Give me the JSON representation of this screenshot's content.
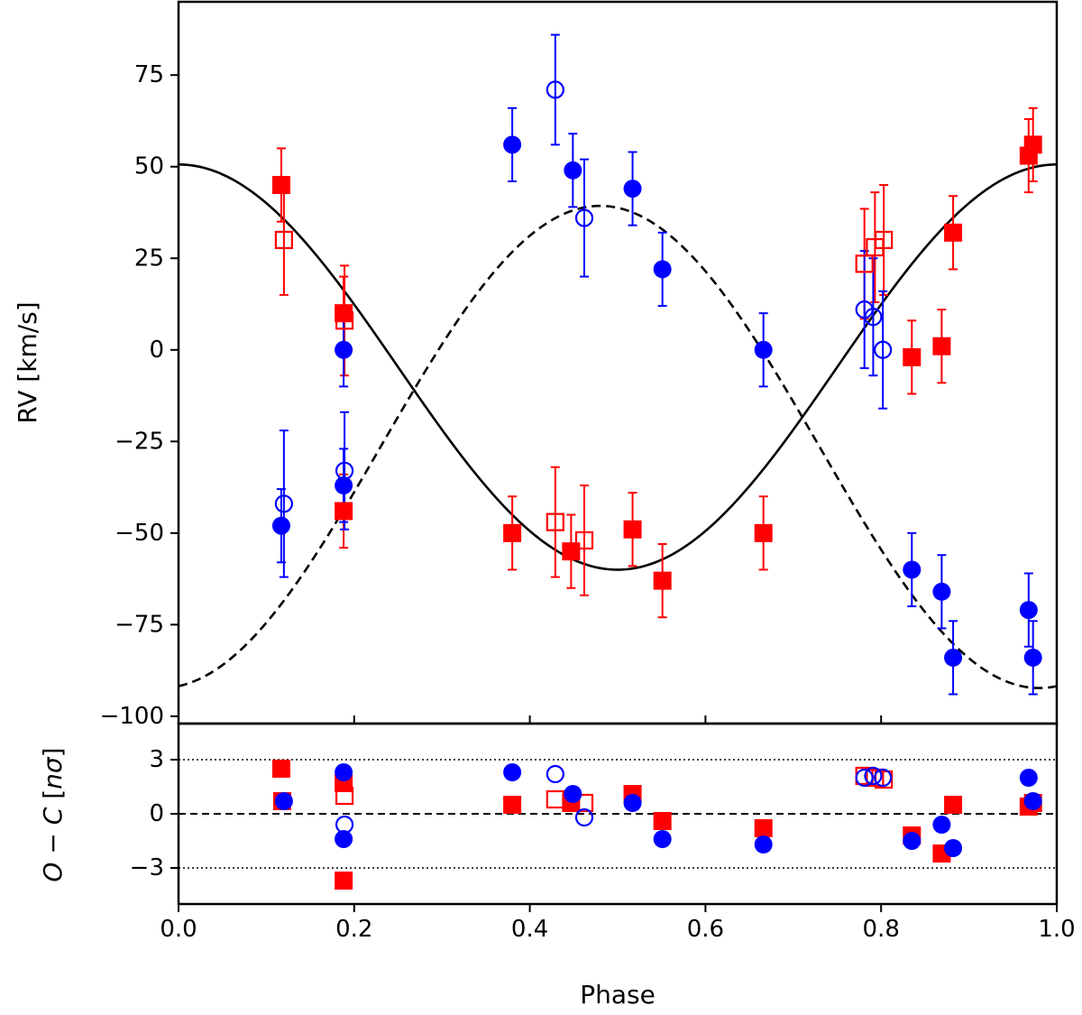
{
  "chart_data": {
    "type": "scatter",
    "title": "",
    "xlabel": "Phase",
    "xlim": [
      0.0,
      1.0
    ],
    "xticks": [
      "0.0",
      "0.2",
      "0.4",
      "0.6",
      "0.8",
      "1.0"
    ],
    "top_panel": {
      "ylabel": "RV [km/s]",
      "ylim": [
        -102,
        95
      ],
      "yticks": [
        "75",
        "50",
        "25",
        "0",
        "−25",
        "−50",
        "−75",
        "−100"
      ],
      "ytick_values": [
        75,
        50,
        25,
        0,
        -25,
        -50,
        -75,
        -100
      ],
      "models": [
        {
          "name": "solid model curve",
          "style": "solid",
          "color": "#000000",
          "gamma": -4.7,
          "K": 55.3,
          "phase_of_max": 0.0
        },
        {
          "name": "dashed model curve",
          "style": "dashed",
          "color": "#000000",
          "gamma": -26.5,
          "K": 65.8,
          "phase_of_max": 0.48
        }
      ],
      "series": [
        {
          "name": "red filled squares",
          "color": "#ff0000",
          "marker": "square",
          "filled": true,
          "points": [
            {
              "x": 0.117,
              "y": 45,
              "err": 10
            },
            {
              "x": 0.188,
              "y": 10,
              "err": 10
            },
            {
              "x": 0.188,
              "y": -44,
              "err": 10
            },
            {
              "x": 0.38,
              "y": -50,
              "err": 10
            },
            {
              "x": 0.447,
              "y": -55,
              "err": 10
            },
            {
              "x": 0.517,
              "y": -49,
              "err": 10
            },
            {
              "x": 0.551,
              "y": -63,
              "err": 10
            },
            {
              "x": 0.666,
              "y": -50,
              "err": 10
            },
            {
              "x": 0.835,
              "y": -2,
              "err": 10
            },
            {
              "x": 0.869,
              "y": 1,
              "err": 10
            },
            {
              "x": 0.882,
              "y": 32,
              "err": 10
            },
            {
              "x": 0.968,
              "y": 53,
              "err": 10
            },
            {
              "x": 0.973,
              "y": 56,
              "err": 10
            }
          ]
        },
        {
          "name": "red open squares",
          "color": "#ff0000",
          "marker": "square",
          "filled": false,
          "points": [
            {
              "x": 0.12,
              "y": 30,
              "err": 15
            },
            {
              "x": 0.189,
              "y": 8,
              "err": 15
            },
            {
              "x": 0.429,
              "y": -47,
              "err": 15
            },
            {
              "x": 0.462,
              "y": -52,
              "err": 15
            },
            {
              "x": 0.781,
              "y": 23.5,
              "err": 15
            },
            {
              "x": 0.793,
              "y": 28,
              "err": 15
            },
            {
              "x": 0.803,
              "y": 30,
              "err": 15
            }
          ]
        },
        {
          "name": "blue filled circles",
          "color": "#0000ff",
          "marker": "circle",
          "filled": true,
          "points": [
            {
              "x": 0.117,
              "y": -48,
              "err": 10
            },
            {
              "x": 0.188,
              "y": 0,
              "err": 10
            },
            {
              "x": 0.188,
              "y": -37,
              "err": 10
            },
            {
              "x": 0.38,
              "y": 56,
              "err": 10
            },
            {
              "x": 0.449,
              "y": 49,
              "err": 10
            },
            {
              "x": 0.517,
              "y": 44,
              "err": 10
            },
            {
              "x": 0.551,
              "y": 22,
              "err": 10
            },
            {
              "x": 0.666,
              "y": 0,
              "err": 10
            },
            {
              "x": 0.835,
              "y": -60,
              "err": 10
            },
            {
              "x": 0.869,
              "y": -66,
              "err": 10
            },
            {
              "x": 0.882,
              "y": -84,
              "err": 10
            },
            {
              "x": 0.968,
              "y": -71,
              "err": 10
            },
            {
              "x": 0.973,
              "y": -84,
              "err": 10
            }
          ]
        },
        {
          "name": "blue open circles",
          "color": "#0000ff",
          "marker": "circle",
          "filled": false,
          "points": [
            {
              "x": 0.12,
              "y": -42,
              "err": 20
            },
            {
              "x": 0.189,
              "y": -33,
              "err": 16
            },
            {
              "x": 0.429,
              "y": 71,
              "err": 15
            },
            {
              "x": 0.462,
              "y": 36,
              "err": 16
            },
            {
              "x": 0.781,
              "y": 11,
              "err": 16
            },
            {
              "x": 0.791,
              "y": 9,
              "err": 16
            },
            {
              "x": 0.802,
              "y": 0,
              "err": 16
            }
          ]
        }
      ]
    },
    "bottom_panel": {
      "ylabel_parts": [
        "O",
        " − ",
        "C",
        " [",
        "nσ",
        "]"
      ],
      "ylim": [
        -5,
        5
      ],
      "yticks": [
        "3",
        "0",
        "−3"
      ],
      "ytick_values": [
        3,
        0,
        -3
      ],
      "reference_lines": [
        {
          "y": 3,
          "style": "dotted"
        },
        {
          "y": 0,
          "style": "dashed"
        },
        {
          "y": -3,
          "style": "dotted"
        }
      ],
      "series": [
        {
          "name": "red filled squares residuals",
          "color": "#ff0000",
          "marker": "square",
          "filled": true,
          "points": [
            {
              "x": 0.117,
              "y": 2.5
            },
            {
              "x": 0.118,
              "y": 0.7
            },
            {
              "x": 0.188,
              "y": 1.7
            },
            {
              "x": 0.188,
              "y": -3.7
            },
            {
              "x": 0.38,
              "y": 0.5
            },
            {
              "x": 0.447,
              "y": 0.6
            },
            {
              "x": 0.517,
              "y": 1.1
            },
            {
              "x": 0.551,
              "y": -0.4
            },
            {
              "x": 0.666,
              "y": -0.8
            },
            {
              "x": 0.835,
              "y": -1.2
            },
            {
              "x": 0.869,
              "y": -2.2
            },
            {
              "x": 0.882,
              "y": 0.5
            },
            {
              "x": 0.968,
              "y": 0.4
            },
            {
              "x": 0.973,
              "y": 0.6
            }
          ]
        },
        {
          "name": "red open squares residuals",
          "color": "#ff0000",
          "marker": "square",
          "filled": false,
          "points": [
            {
              "x": 0.189,
              "y": 1.0
            },
            {
              "x": 0.429,
              "y": 0.8
            },
            {
              "x": 0.462,
              "y": 0.6
            },
            {
              "x": 0.781,
              "y": 2.1
            },
            {
              "x": 0.793,
              "y": 2.0
            },
            {
              "x": 0.803,
              "y": 1.9
            }
          ]
        },
        {
          "name": "blue filled circles residuals",
          "color": "#0000ff",
          "marker": "circle",
          "filled": true,
          "points": [
            {
              "x": 0.12,
              "y": 0.7
            },
            {
              "x": 0.188,
              "y": 2.3
            },
            {
              "x": 0.188,
              "y": -1.4
            },
            {
              "x": 0.38,
              "y": 2.3
            },
            {
              "x": 0.449,
              "y": 1.1
            },
            {
              "x": 0.517,
              "y": 0.6
            },
            {
              "x": 0.551,
              "y": -1.4
            },
            {
              "x": 0.666,
              "y": -1.7
            },
            {
              "x": 0.835,
              "y": -1.5
            },
            {
              "x": 0.869,
              "y": -0.6
            },
            {
              "x": 0.882,
              "y": -1.9
            },
            {
              "x": 0.968,
              "y": 2.0
            },
            {
              "x": 0.973,
              "y": 0.7
            }
          ]
        },
        {
          "name": "blue open circles residuals",
          "color": "#0000ff",
          "marker": "circle",
          "filled": false,
          "points": [
            {
              "x": 0.189,
              "y": -0.6
            },
            {
              "x": 0.429,
              "y": 2.2
            },
            {
              "x": 0.462,
              "y": -0.2
            },
            {
              "x": 0.781,
              "y": 2.0
            },
            {
              "x": 0.791,
              "y": 2.1
            },
            {
              "x": 0.802,
              "y": 2.0
            }
          ]
        }
      ]
    }
  }
}
